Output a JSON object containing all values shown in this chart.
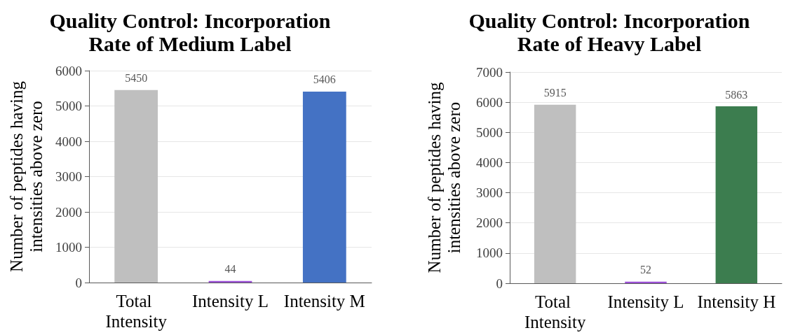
{
  "chart_data": [
    {
      "type": "bar",
      "title": "Quality Control: Incorporation Rate of Medium Label",
      "ylabel": "Number of peptides having intensities above zero",
      "categories": [
        "Total Intensity",
        "Intensity L",
        "Intensity M"
      ],
      "values": [
        5450,
        44,
        5406
      ],
      "colors": [
        "#bfbfbf",
        "#9b4fd5",
        "#4472c4"
      ],
      "ylim": [
        0,
        6000
      ],
      "yticks": [
        0,
        1000,
        2000,
        3000,
        4000,
        5000,
        6000
      ],
      "grid": "y",
      "data_labels": true
    },
    {
      "type": "bar",
      "title": "Quality Control: Incorporation Rate of Heavy Label",
      "ylabel": "Number of peptides having intensities above zero",
      "categories": [
        "Total Intensity",
        "Intensity L",
        "Intensity H"
      ],
      "values": [
        5915,
        52,
        5863
      ],
      "colors": [
        "#bfbfbf",
        "#9b4fd5",
        "#3c7d4f"
      ],
      "ylim": [
        0,
        7000
      ],
      "yticks": [
        0,
        1000,
        2000,
        3000,
        4000,
        5000,
        6000,
        7000
      ],
      "grid": "y",
      "data_labels": true
    }
  ]
}
